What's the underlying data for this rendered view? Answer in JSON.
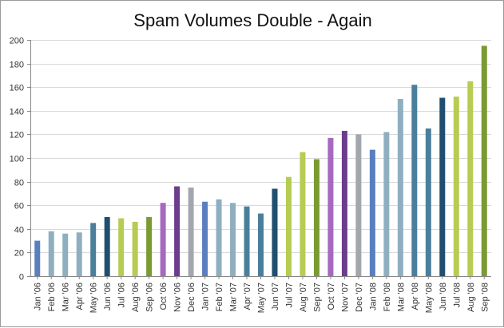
{
  "chart_data": {
    "type": "bar",
    "title": "Spam Volumes Double - Again",
    "xlabel": "",
    "ylabel": "",
    "ylim": [
      0,
      200
    ],
    "yticks": [
      0,
      20,
      40,
      60,
      80,
      100,
      120,
      140,
      160,
      180,
      200
    ],
    "grid": true,
    "legend": "none",
    "categories": [
      "Jan '06",
      "Feb '06",
      "Mar '06",
      "Apr '06",
      "May '06",
      "Jun '06",
      "Jul '06",
      "Aug '06",
      "Sep '06",
      "Oct '06",
      "Nov '06",
      "Dec '06",
      "Jan '07",
      "Feb '07",
      "Mar '07",
      "Apr '07",
      "May '07",
      "Jun '07",
      "Jul '07",
      "Aug '07",
      "Sep '07",
      "Oct '07",
      "Nov '07",
      "Dec '07",
      "Jan '08",
      "Feb '08",
      "Mar '08",
      "Apr '08",
      "May '08",
      "Jun '08",
      "Jul '08",
      "Aug '08",
      "Sep '08"
    ],
    "values": [
      30,
      38,
      36,
      37,
      45,
      50,
      49,
      46,
      50,
      62,
      76,
      75,
      63,
      65,
      62,
      59,
      53,
      74,
      84,
      105,
      99,
      117,
      123,
      120,
      107,
      122,
      150,
      162,
      125,
      151,
      152,
      165,
      195
    ],
    "colors": [
      "#5a7fbf",
      "#8fafc0",
      "#8fafc0",
      "#8fafc0",
      "#4a7f9c",
      "#1f4e6e",
      "#b6cc52",
      "#b6cc52",
      "#7a9a33",
      "#a569bf",
      "#6b3d8c",
      "#a2a6ad",
      "#5a7fbf",
      "#8fafc0",
      "#8fafc0",
      "#4a7f9c",
      "#4a7f9c",
      "#1f4e6e",
      "#b6cc52",
      "#b6cc52",
      "#7a9a33",
      "#a569bf",
      "#6b3d8c",
      "#a2a6ad",
      "#5a7fbf",
      "#8fafc0",
      "#8fafc0",
      "#4a7f9c",
      "#4a7f9c",
      "#1f4e6e",
      "#b6cc52",
      "#b6cc52",
      "#7a9a33"
    ]
  }
}
